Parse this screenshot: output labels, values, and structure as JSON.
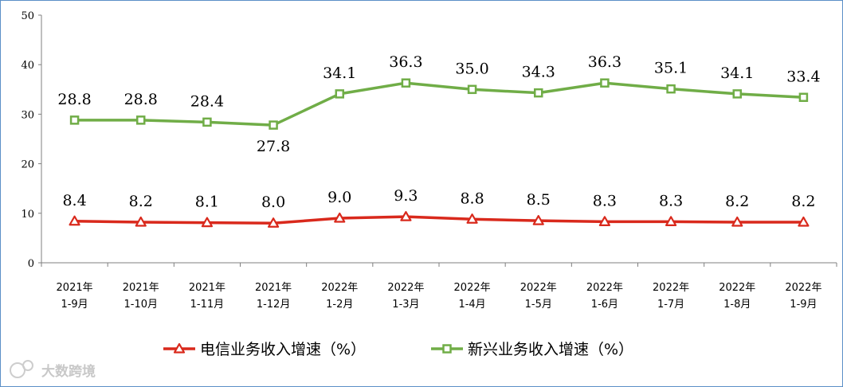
{
  "chart_data": {
    "type": "line",
    "categories": [
      [
        "2021年",
        "1-9月"
      ],
      [
        "2021年",
        "1-10月"
      ],
      [
        "2021年",
        "1-11月"
      ],
      [
        "2021年",
        "1-12月"
      ],
      [
        "2022年",
        "1-2月"
      ],
      [
        "2022年",
        "1-3月"
      ],
      [
        "2022年",
        "1-4月"
      ],
      [
        "2022年",
        "1-5月"
      ],
      [
        "2022年",
        "1-6月"
      ],
      [
        "2022年",
        "1-7月"
      ],
      [
        "2022年",
        "1-8月"
      ],
      [
        "2022年",
        "1-9月"
      ]
    ],
    "series": [
      {
        "name": "电信业务收入增速（%）",
        "color": "#d9291c",
        "marker": "triangle",
        "values": [
          8.4,
          8.2,
          8.1,
          8.0,
          9.0,
          9.3,
          8.8,
          8.5,
          8.3,
          8.3,
          8.2,
          8.2
        ],
        "labels": [
          "8.4",
          "8.2",
          "8.1",
          "8.0",
          "9.0",
          "9.3",
          "8.8",
          "8.5",
          "8.3",
          "8.3",
          "8.2",
          "8.2"
        ]
      },
      {
        "name": "新兴业务收入增速（%）",
        "color": "#70ad47",
        "marker": "square",
        "values": [
          28.8,
          28.8,
          28.4,
          27.8,
          34.1,
          36.3,
          35.0,
          34.3,
          36.3,
          35.1,
          34.1,
          33.4
        ],
        "labels": [
          "28.8",
          "28.8",
          "28.4",
          "27.8",
          "34.1",
          "36.3",
          "35.0",
          "34.3",
          "36.3",
          "35.1",
          "34.1",
          "33.4"
        ]
      }
    ],
    "ylim": [
      0,
      50
    ],
    "yticks": [
      "0",
      "10",
      "20",
      "30",
      "40",
      "50"
    ],
    "grid": false,
    "legend": "bottom"
  },
  "watermark": {
    "text": "大数跨境"
  }
}
